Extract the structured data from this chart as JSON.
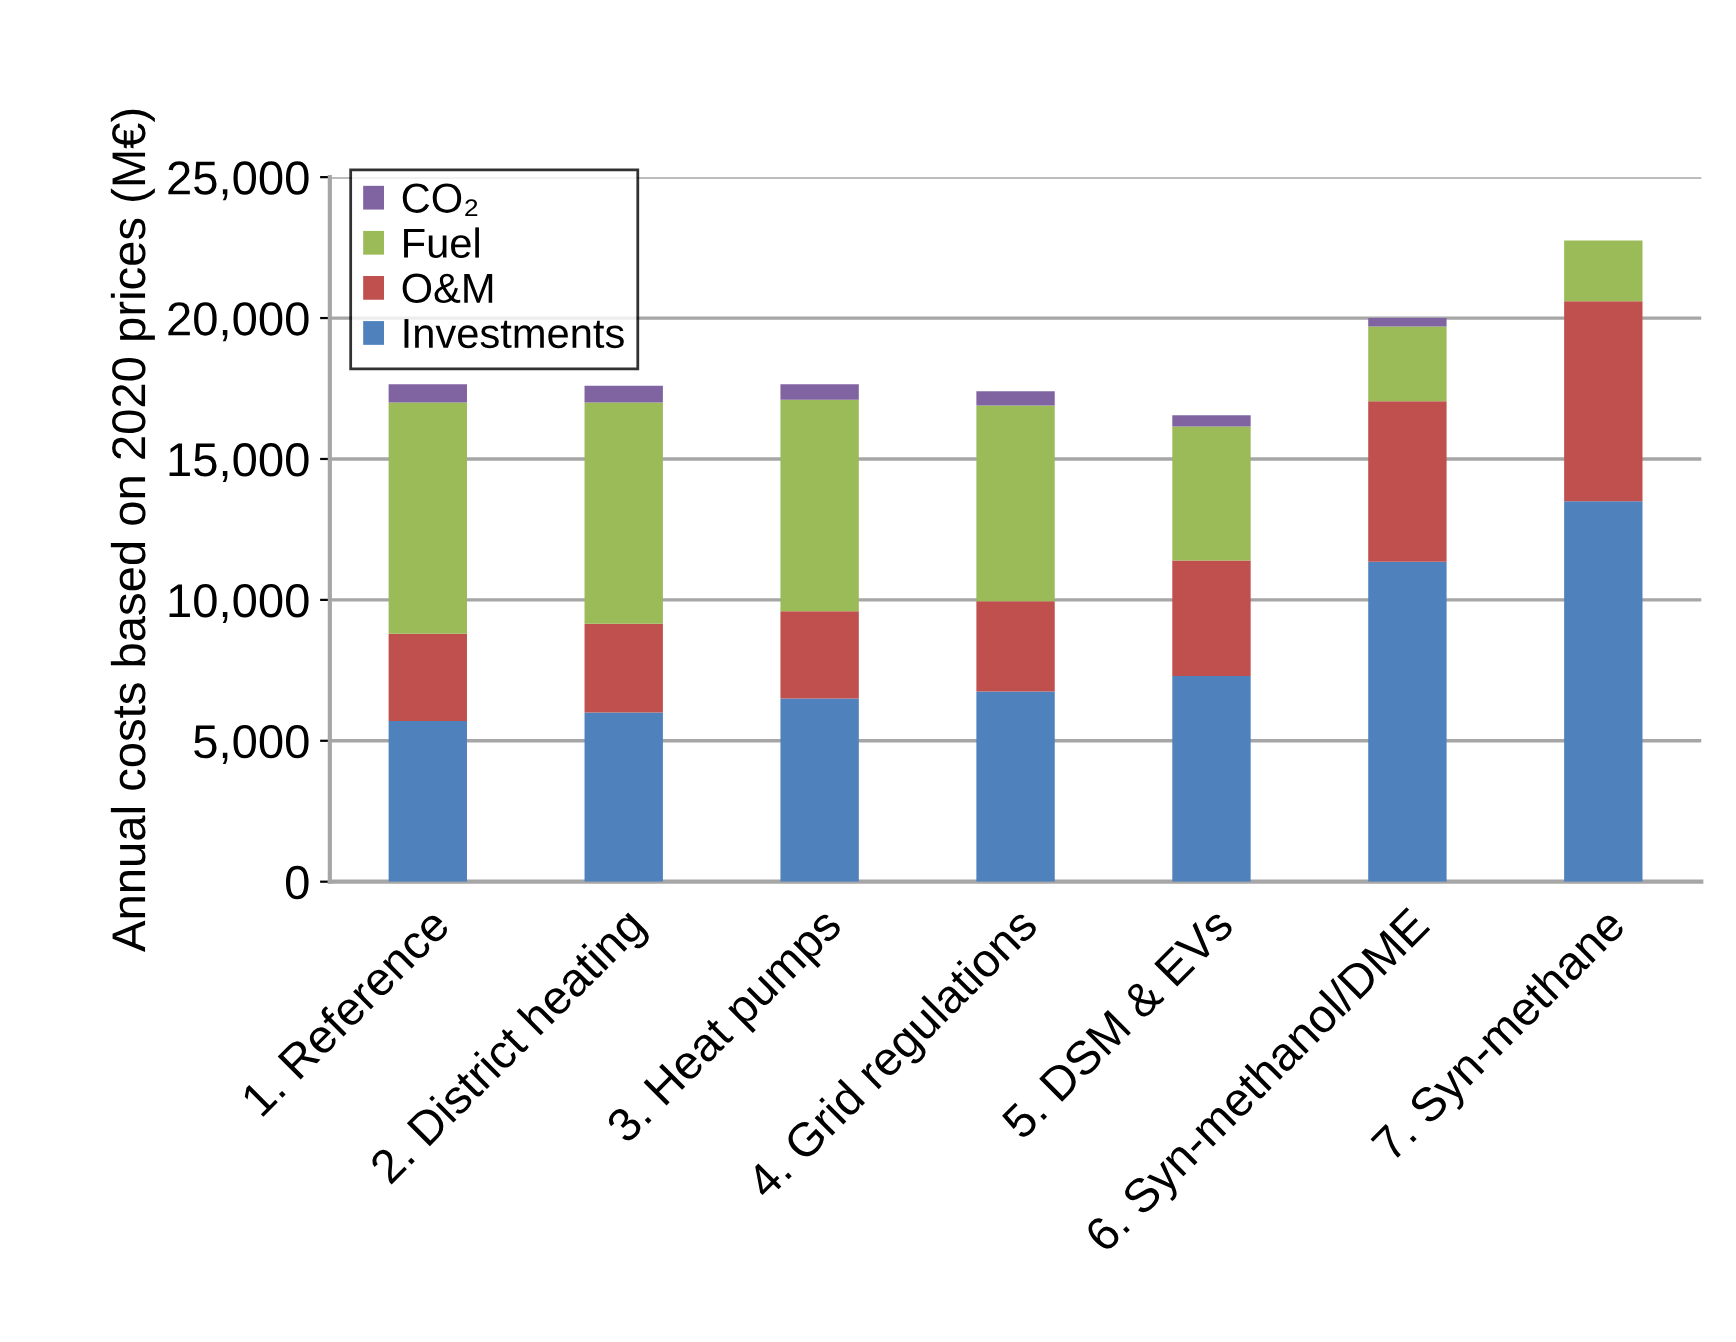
{
  "chart_data": {
    "type": "bar",
    "stacked": true,
    "ylabel": "Annual costs based on 2020 prices (M€)",
    "categories": [
      "1. Reference",
      "2. District heating",
      "3. Heat pumps",
      "4. Grid regulations",
      "5. DSM & EVs",
      "6. Syn-methanol/DME",
      "7. Syn-methane"
    ],
    "series": [
      {
        "name": "Investments",
        "color": "#4f81bd",
        "values": [
          5700,
          6000,
          6500,
          6750,
          7300,
          11350,
          13500
        ]
      },
      {
        "name": "O&M",
        "color": "#c0504d",
        "values": [
          3100,
          3150,
          3100,
          3200,
          4100,
          5700,
          7100
        ]
      },
      {
        "name": "Fuel",
        "color": "#9bbb59",
        "values": [
          8200,
          7850,
          7500,
          6950,
          4750,
          2650,
          2150
        ]
      },
      {
        "name": "CO₂",
        "color": "#8064a2",
        "values": [
          650,
          600,
          550,
          500,
          400,
          300,
          0
        ]
      }
    ],
    "ylim": [
      0,
      25000
    ],
    "yticks": [
      {
        "value": 0,
        "label": "0"
      },
      {
        "value": 5000,
        "label": "5,000"
      },
      {
        "value": 10000,
        "label": "10,000"
      },
      {
        "value": 15000,
        "label": "15,000"
      },
      {
        "value": 20000,
        "label": "20,000"
      },
      {
        "value": 25000,
        "label": "25,000"
      }
    ],
    "grid": "y",
    "legend": "top left"
  }
}
